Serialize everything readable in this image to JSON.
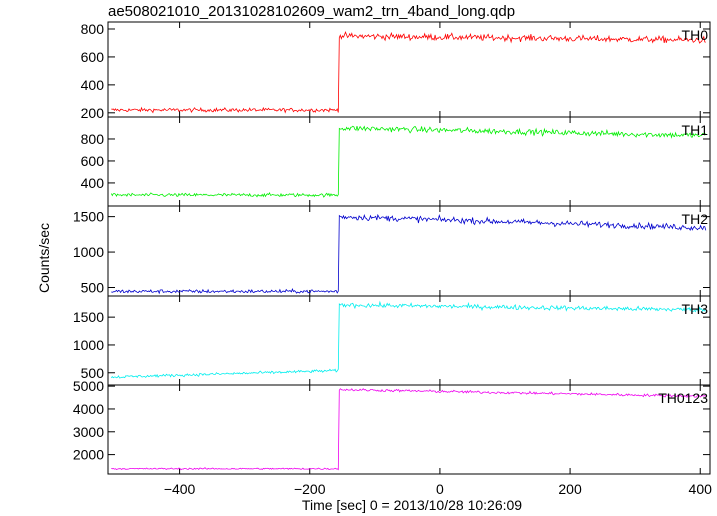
{
  "chart_data": {
    "type": "line",
    "title": "ae508021010_20131028102609_wam2_trn_4band_long.qdp",
    "xlabel": "Time [sec] 0 = 2013/10/28 10:26:09",
    "ylabel": "Counts/sec",
    "xlim": [
      -510,
      415
    ],
    "xticks": [
      -400,
      -200,
      0,
      200,
      400
    ],
    "step_time": -155,
    "panels": [
      {
        "name": "TH0",
        "color": "#ff0000",
        "ylim": [
          170,
          850
        ],
        "yticks": [
          200,
          400,
          600,
          800
        ],
        "series": {
          "before": 220,
          "after_start": 750,
          "after_end": 720,
          "noise": 22
        }
      },
      {
        "name": "TH1",
        "color": "#00ee00",
        "ylim": [
          190,
          1000
        ],
        "yticks": [
          400,
          600,
          800
        ],
        "series": {
          "before": 290,
          "after_start": 900,
          "after_end": 830,
          "noise": 25
        }
      },
      {
        "name": "TH2",
        "color": "#0000cc",
        "ylim": [
          380,
          1650
        ],
        "yticks": [
          500,
          1000,
          1500
        ],
        "series": {
          "before": 445,
          "after_start": 1500,
          "after_end": 1340,
          "noise": 40
        }
      },
      {
        "name": "TH3",
        "color": "#00eeee",
        "ylim": [
          280,
          1880
        ],
        "yticks": [
          500,
          1000,
          1500
        ],
        "series": {
          "before": 420,
          "before_end": 540,
          "after_start": 1720,
          "after_end": 1630,
          "noise": 40
        }
      },
      {
        "name": "TH0123",
        "color": "#ee00ee",
        "ylim": [
          1150,
          5050
        ],
        "yticks": [
          2000,
          3000,
          4000,
          5000
        ],
        "series": {
          "before": 1380,
          "after_start": 4850,
          "after_end": 4550,
          "noise": 55
        }
      }
    ]
  }
}
